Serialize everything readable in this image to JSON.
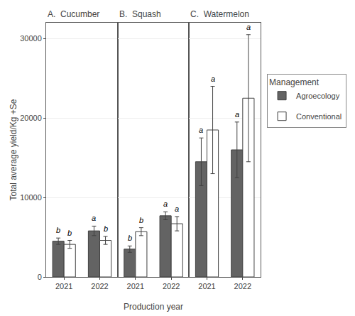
{
  "chart_data": [
    {
      "type": "bar",
      "title": "A.  Cucumber",
      "categories": [
        "2021",
        "2022"
      ],
      "ylabel": "Total average yield/Kg +Se",
      "series": [
        {
          "name": "Agroecology",
          "color": "#636363",
          "values": [
            4500,
            5800
          ],
          "error": [
            400,
            600
          ],
          "annotations": [
            "b",
            "a"
          ]
        },
        {
          "name": "Conventional",
          "color": "#ffffff",
          "values": [
            4100,
            4600
          ],
          "error": [
            500,
            500
          ],
          "annotations": [
            "b",
            "b"
          ]
        }
      ],
      "ylim": [
        0,
        32000
      ],
      "yticks": [
        0,
        10000,
        20000,
        30000
      ],
      "grid": true
    },
    {
      "type": "bar",
      "title": "B.  Squash",
      "categories": [
        "2021",
        "2022"
      ],
      "xlabel": "Production year",
      "series": [
        {
          "name": "Agroecology",
          "color": "#636363",
          "values": [
            3500,
            7700
          ],
          "error": [
            400,
            500
          ],
          "annotations": [
            "b",
            "a"
          ]
        },
        {
          "name": "Conventional",
          "color": "#ffffff",
          "values": [
            5700,
            6700
          ],
          "error": [
            500,
            900
          ],
          "annotations": [
            "b",
            "a"
          ]
        }
      ],
      "ylim": [
        0,
        32000
      ],
      "yticks": [
        0,
        10000,
        20000,
        30000
      ],
      "grid": true
    },
    {
      "type": "bar",
      "title": "C.  Watermelon",
      "categories": [
        "2021",
        "2022"
      ],
      "legend": "right",
      "legend_title": "Management",
      "series": [
        {
          "name": "Agroecology",
          "color": "#636363",
          "values": [
            14500,
            16000
          ],
          "error": [
            3000,
            3500
          ],
          "annotations": [
            "a",
            "a"
          ]
        },
        {
          "name": "Conventional",
          "color": "#ffffff",
          "values": [
            18500,
            22500
          ],
          "error": [
            5500,
            8000
          ],
          "annotations": [
            "a",
            "a"
          ]
        }
      ],
      "ylim": [
        0,
        32000
      ],
      "yticks": [
        0,
        10000,
        20000,
        30000
      ],
      "grid": true
    }
  ]
}
